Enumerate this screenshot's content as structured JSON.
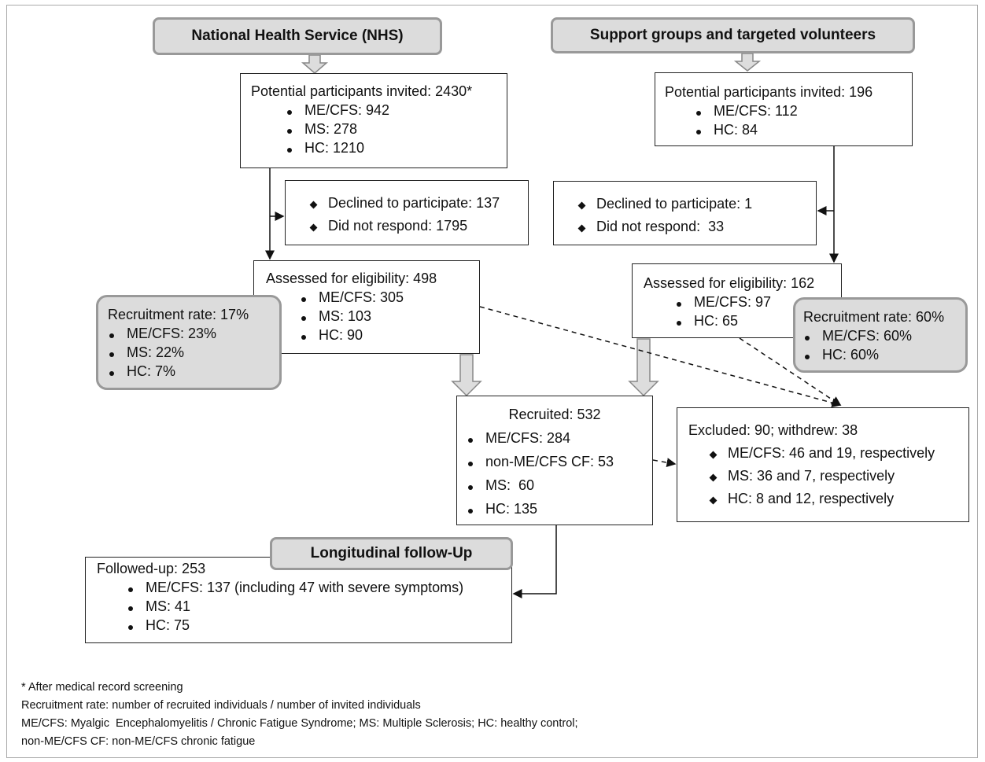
{
  "headers": {
    "nhs": "National Health Service (NHS)",
    "support": "Support groups and targeted volunteers",
    "followup": "Longitudinal follow-Up"
  },
  "nhs": {
    "invited": {
      "title": "Potential participants invited: 2430*",
      "items": [
        "ME/CFS: 942",
        "MS: 278",
        "HC: 1210"
      ]
    },
    "declined": {
      "items": [
        "Declined to participate: 137",
        "Did not respond: 1795"
      ]
    },
    "assessed": {
      "title": "Assessed for eligibility: 498",
      "items": [
        "ME/CFS: 305",
        "MS: 103",
        "HC: 90"
      ]
    },
    "recruitment_rate": {
      "title": "Recruitment rate: 17%",
      "items": [
        "ME/CFS: 23%",
        "MS: 22%",
        "HC: 7%"
      ]
    }
  },
  "support": {
    "invited": {
      "title": "Potential participants invited: 196",
      "items": [
        "ME/CFS: 112",
        "HC: 84"
      ]
    },
    "declined": {
      "items": [
        "Declined to participate: 1",
        "Did not respond:  33"
      ]
    },
    "assessed": {
      "title": "Assessed for eligibility: 162",
      "items": [
        "ME/CFS: 97",
        "HC: 65"
      ]
    },
    "recruitment_rate": {
      "title": "Recruitment rate: 60%",
      "items": [
        "ME/CFS: 60%",
        "HC: 60%"
      ]
    }
  },
  "recruited": {
    "title": "Recruited: 532",
    "items": [
      "ME/CFS: 284",
      "non-ME/CFS CF: 53",
      "MS:  60",
      "HC: 135"
    ]
  },
  "excluded": {
    "title": "Excluded: 90; withdrew: 38",
    "items": [
      "ME/CFS: 46 and 19, respectively",
      "MS: 36 and 7, respectively",
      "HC: 8 and 12, respectively"
    ]
  },
  "followed_up": {
    "title": "Followed-up: 253",
    "items": [
      "ME/CFS: 137 (including 47 with severe symptoms)",
      "MS: 41",
      "HC: 75"
    ]
  },
  "footnotes": [
    "* After medical record screening",
    "Recruitment rate: number of recruited individuals / number of invited individuals",
    "ME/CFS: Myalgic  Encephalomyelitis / Chronic Fatigue Syndrome; MS: Multiple Sclerosis; HC: healthy control;",
    "non-ME/CFS CF: non-ME/CFS chronic fatigue"
  ]
}
